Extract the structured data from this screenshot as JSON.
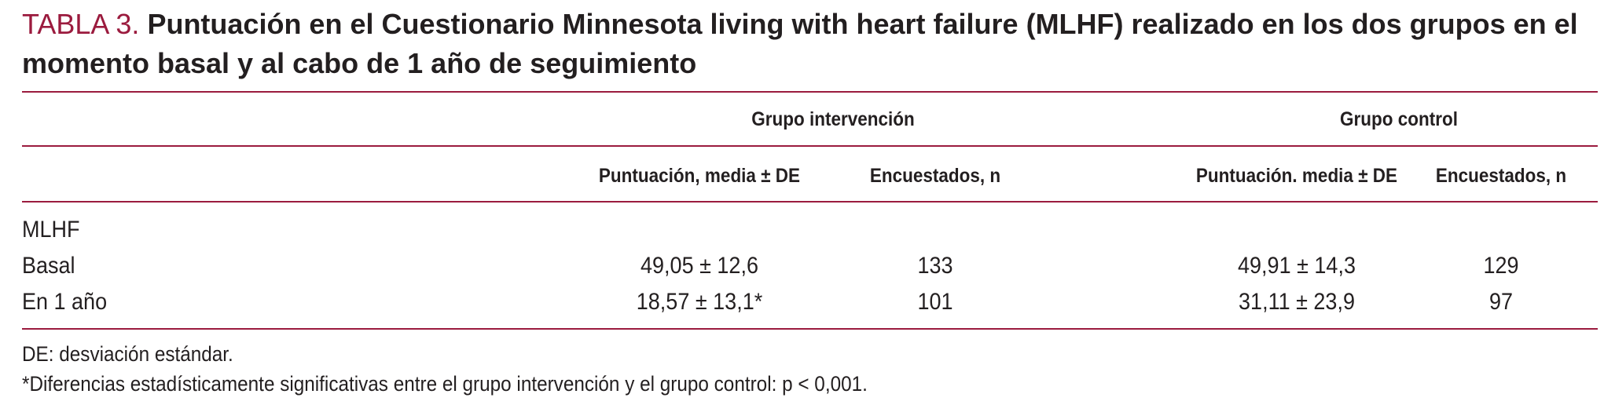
{
  "title": {
    "label": "TABLA 3.",
    "text": "Puntuación en el Cuestionario Minnesota living with heart failure (MLHF) realizado en los dos grupos en el momento basal y al cabo de 1 año de seguimiento"
  },
  "groups": {
    "intervention": "Grupo intervención",
    "control": "Grupo control"
  },
  "columns": {
    "int_score": "Puntuación, media ± DE",
    "int_n": "Encuestados, n",
    "ctl_score": "Puntuación. media ± DE",
    "ctl_n": "Encuestados, n"
  },
  "section_label": "MLHF",
  "rows": [
    {
      "label": "Basal",
      "int_score": "49,05 ± 12,6",
      "int_n": "133",
      "ctl_score": "49,91 ± 14,3",
      "ctl_n": "129"
    },
    {
      "label": "En 1 año",
      "int_score": "18,57 ± 13,1*",
      "int_n": "101",
      "ctl_score": "31,11 ± 23,9",
      "ctl_n": "97"
    }
  ],
  "notes": [
    "DE: desviación estándar.",
    "*Diferencias estadísticamente significativas entre el grupo intervención y el grupo control: p < 0,001."
  ],
  "colors": {
    "accent": "#9b1b3e",
    "text": "#231f20"
  }
}
